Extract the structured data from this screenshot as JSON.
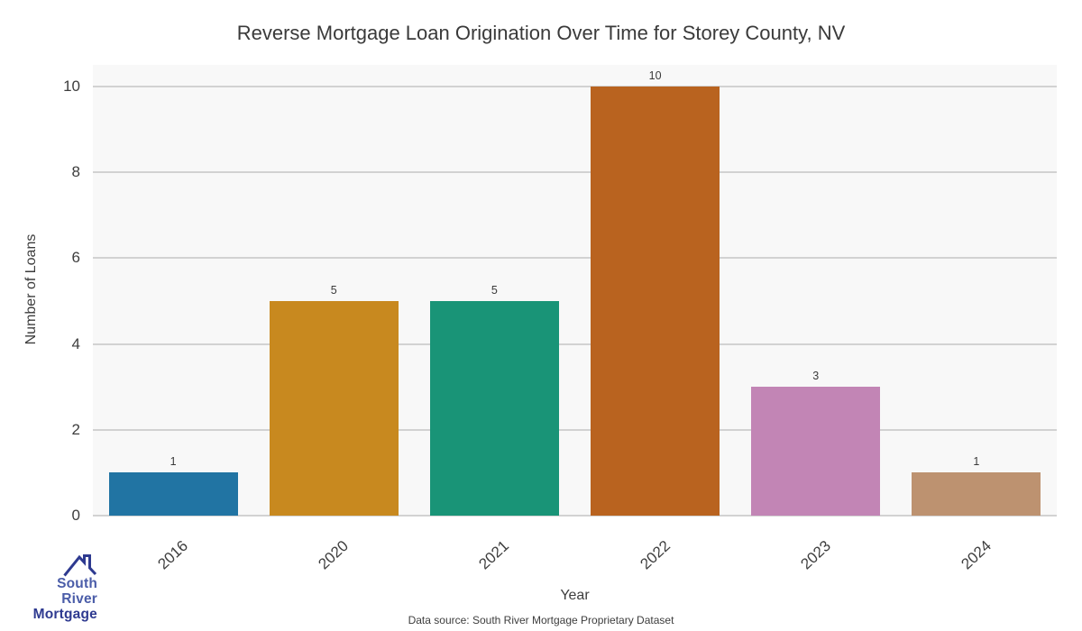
{
  "chart_data": {
    "type": "bar",
    "title": "Reverse Mortgage Loan Origination Over Time for Storey County, NV",
    "xlabel": "Year",
    "ylabel": "Number of Loans",
    "categories": [
      "2016",
      "2020",
      "2021",
      "2022",
      "2023",
      "2024"
    ],
    "values": [
      1,
      5,
      5,
      10,
      3,
      1
    ],
    "bar_colors": [
      "#2174a3",
      "#c8891f",
      "#199477",
      "#b9631f",
      "#c285b5",
      "#bd9270"
    ],
    "value_labels": [
      "1",
      "5",
      "5",
      "10",
      "3",
      "1"
    ],
    "ylim": [
      0,
      10.5
    ],
    "yticks": [
      0,
      2,
      4,
      6,
      8,
      10
    ],
    "grid": "horizontal",
    "legend": "none",
    "plot_background": "#f8f8f8",
    "grid_color": "#d2d2d2"
  },
  "footnote": "Data source: South River Mortgage Proprietary Dataset",
  "logo": {
    "line1": "South River",
    "line2": "Mortgage",
    "color_primary": "#2e3a90",
    "color_secondary": "#4a5ca8"
  }
}
